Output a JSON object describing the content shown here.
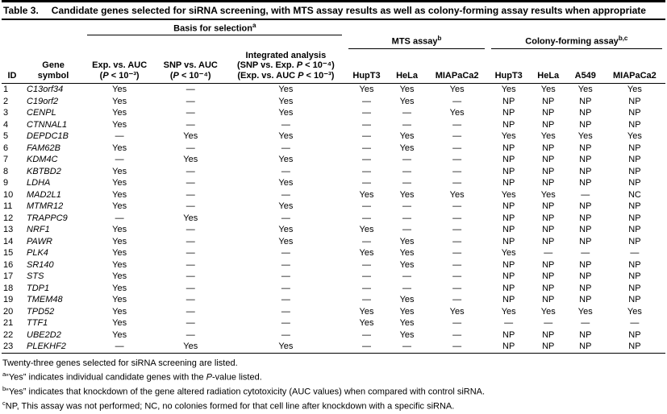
{
  "table": {
    "label": "Table 3.",
    "title": "Candidate genes selected for siRNA screening, with MTS assay results as well as colony-forming assay results when appropriate",
    "header": {
      "id_label": "ID",
      "gene_label_lines": [
        "Gene",
        "symbol"
      ],
      "groups": [
        {
          "label": "Basis for selection",
          "sup": "a",
          "colspan": 3
        },
        {
          "label": "MTS assay",
          "sup": "b",
          "colspan": 3
        },
        {
          "label": "Colony-forming assay",
          "sup": "b,c",
          "colspan": 4
        }
      ],
      "columns": [
        {
          "lines": [
            "Exp. vs. AUC",
            "(P < 10⁻³)"
          ]
        },
        {
          "lines": [
            "SNP vs. AUC",
            "(P < 10⁻⁴)"
          ]
        },
        {
          "lines": [
            "Integrated analysis",
            "(SNP vs. Exp. P < 10⁻⁴)",
            "(Exp. vs. AUC P < 10⁻³)"
          ]
        },
        {
          "lines": [
            "HupT3"
          ]
        },
        {
          "lines": [
            "HeLa"
          ]
        },
        {
          "lines": [
            "MIAPaCa2"
          ]
        },
        {
          "lines": [
            "HupT3"
          ]
        },
        {
          "lines": [
            "HeLa"
          ]
        },
        {
          "lines": [
            "A549"
          ]
        },
        {
          "lines": [
            "MIAPaCa2"
          ]
        }
      ]
    },
    "rows": [
      {
        "id": "1",
        "gene": "C13orf34",
        "cells": [
          "Yes",
          "—",
          "Yes",
          "Yes",
          "Yes",
          "Yes",
          "Yes",
          "Yes",
          "Yes",
          "Yes"
        ]
      },
      {
        "id": "2",
        "gene": "C19orf2",
        "cells": [
          "Yes",
          "—",
          "Yes",
          "—",
          "Yes",
          "—",
          "NP",
          "NP",
          "NP",
          "NP"
        ]
      },
      {
        "id": "3",
        "gene": "CENPL",
        "cells": [
          "Yes",
          "—",
          "Yes",
          "—",
          "—",
          "Yes",
          "NP",
          "NP",
          "NP",
          "NP"
        ]
      },
      {
        "id": "4",
        "gene": "CTNNAL1",
        "cells": [
          "Yes",
          "—",
          "—",
          "—",
          "—",
          "—",
          "NP",
          "NP",
          "NP",
          "NP"
        ]
      },
      {
        "id": "5",
        "gene": "DEPDC1B",
        "cells": [
          "—",
          "Yes",
          "Yes",
          "—",
          "Yes",
          "—",
          "Yes",
          "Yes",
          "Yes",
          "Yes"
        ]
      },
      {
        "id": "6",
        "gene": "FAM62B",
        "cells": [
          "Yes",
          "—",
          "—",
          "—",
          "Yes",
          "—",
          "NP",
          "NP",
          "NP",
          "NP"
        ]
      },
      {
        "id": "7",
        "gene": "KDM4C",
        "cells": [
          "—",
          "Yes",
          "Yes",
          "—",
          "—",
          "—",
          "NP",
          "NP",
          "NP",
          "NP"
        ]
      },
      {
        "id": "8",
        "gene": "KBTBD2",
        "cells": [
          "Yes",
          "—",
          "—",
          "—",
          "—",
          "—",
          "NP",
          "NP",
          "NP",
          "NP"
        ]
      },
      {
        "id": "9",
        "gene": "LDHA",
        "cells": [
          "Yes",
          "—",
          "Yes",
          "—",
          "—",
          "—",
          "NP",
          "NP",
          "NP",
          "NP"
        ]
      },
      {
        "id": "10",
        "gene": "MAD2L1",
        "cells": [
          "Yes",
          "—",
          "—",
          "Yes",
          "Yes",
          "Yes",
          "Yes",
          "Yes",
          "—",
          "NC"
        ]
      },
      {
        "id": "11",
        "gene": "MTMR12",
        "cells": [
          "Yes",
          "—",
          "Yes",
          "—",
          "—",
          "—",
          "NP",
          "NP",
          "NP",
          "NP"
        ]
      },
      {
        "id": "12",
        "gene": "TRAPPC9",
        "cells": [
          "—",
          "Yes",
          "—",
          "—",
          "—",
          "—",
          "NP",
          "NP",
          "NP",
          "NP"
        ]
      },
      {
        "id": "13",
        "gene": "NRF1",
        "cells": [
          "Yes",
          "—",
          "Yes",
          "Yes",
          "—",
          "—",
          "NP",
          "NP",
          "NP",
          "NP"
        ]
      },
      {
        "id": "14",
        "gene": "PAWR",
        "cells": [
          "Yes",
          "—",
          "Yes",
          "—",
          "Yes",
          "—",
          "NP",
          "NP",
          "NP",
          "NP"
        ]
      },
      {
        "id": "15",
        "gene": "PLK4",
        "cells": [
          "Yes",
          "—",
          "—",
          "Yes",
          "Yes",
          "—",
          "Yes",
          "—",
          "—",
          "—"
        ]
      },
      {
        "id": "16",
        "gene": "SR140",
        "cells": [
          "Yes",
          "—",
          "—",
          "—",
          "Yes",
          "—",
          "NP",
          "NP",
          "NP",
          "NP"
        ]
      },
      {
        "id": "17",
        "gene": "STS",
        "cells": [
          "Yes",
          "—",
          "—",
          "—",
          "—",
          "—",
          "NP",
          "NP",
          "NP",
          "NP"
        ]
      },
      {
        "id": "18",
        "gene": "TDP1",
        "cells": [
          "Yes",
          "—",
          "—",
          "—",
          "—",
          "—",
          "NP",
          "NP",
          "NP",
          "NP"
        ]
      },
      {
        "id": "19",
        "gene": "TMEM48",
        "cells": [
          "Yes",
          "—",
          "—",
          "—",
          "Yes",
          "—",
          "NP",
          "NP",
          "NP",
          "NP"
        ]
      },
      {
        "id": "20",
        "gene": "TPD52",
        "cells": [
          "Yes",
          "—",
          "—",
          "Yes",
          "Yes",
          "Yes",
          "Yes",
          "Yes",
          "Yes",
          "Yes"
        ]
      },
      {
        "id": "21",
        "gene": "TTF1",
        "cells": [
          "Yes",
          "—",
          "—",
          "Yes",
          "Yes",
          "—",
          "—",
          "—",
          "—",
          "—"
        ]
      },
      {
        "id": "22",
        "gene": "UBE2D2",
        "cells": [
          "Yes",
          "—",
          "—",
          "—",
          "Yes",
          "—",
          "NP",
          "NP",
          "NP",
          "NP"
        ]
      },
      {
        "id": "23",
        "gene": "PLEKHF2",
        "cells": [
          "—",
          "Yes",
          "Yes",
          "—",
          "—",
          "—",
          "NP",
          "NP",
          "NP",
          "NP"
        ]
      }
    ]
  },
  "footnotes": [
    {
      "marker": "",
      "text": "Twenty-three genes selected for siRNA screening are listed."
    },
    {
      "marker": "a",
      "text": "“Yes” indicates individual candidate genes with the P-value listed."
    },
    {
      "marker": "b",
      "text": "“Yes” indicates that knockdown of the gene altered radiation cytotoxicity (AUC values) when compared with control siRNA."
    },
    {
      "marker": "c",
      "text": "NP, This assay was not performed; NC, no colonies formed for that cell line after knockdown with a specific siRNA."
    }
  ]
}
